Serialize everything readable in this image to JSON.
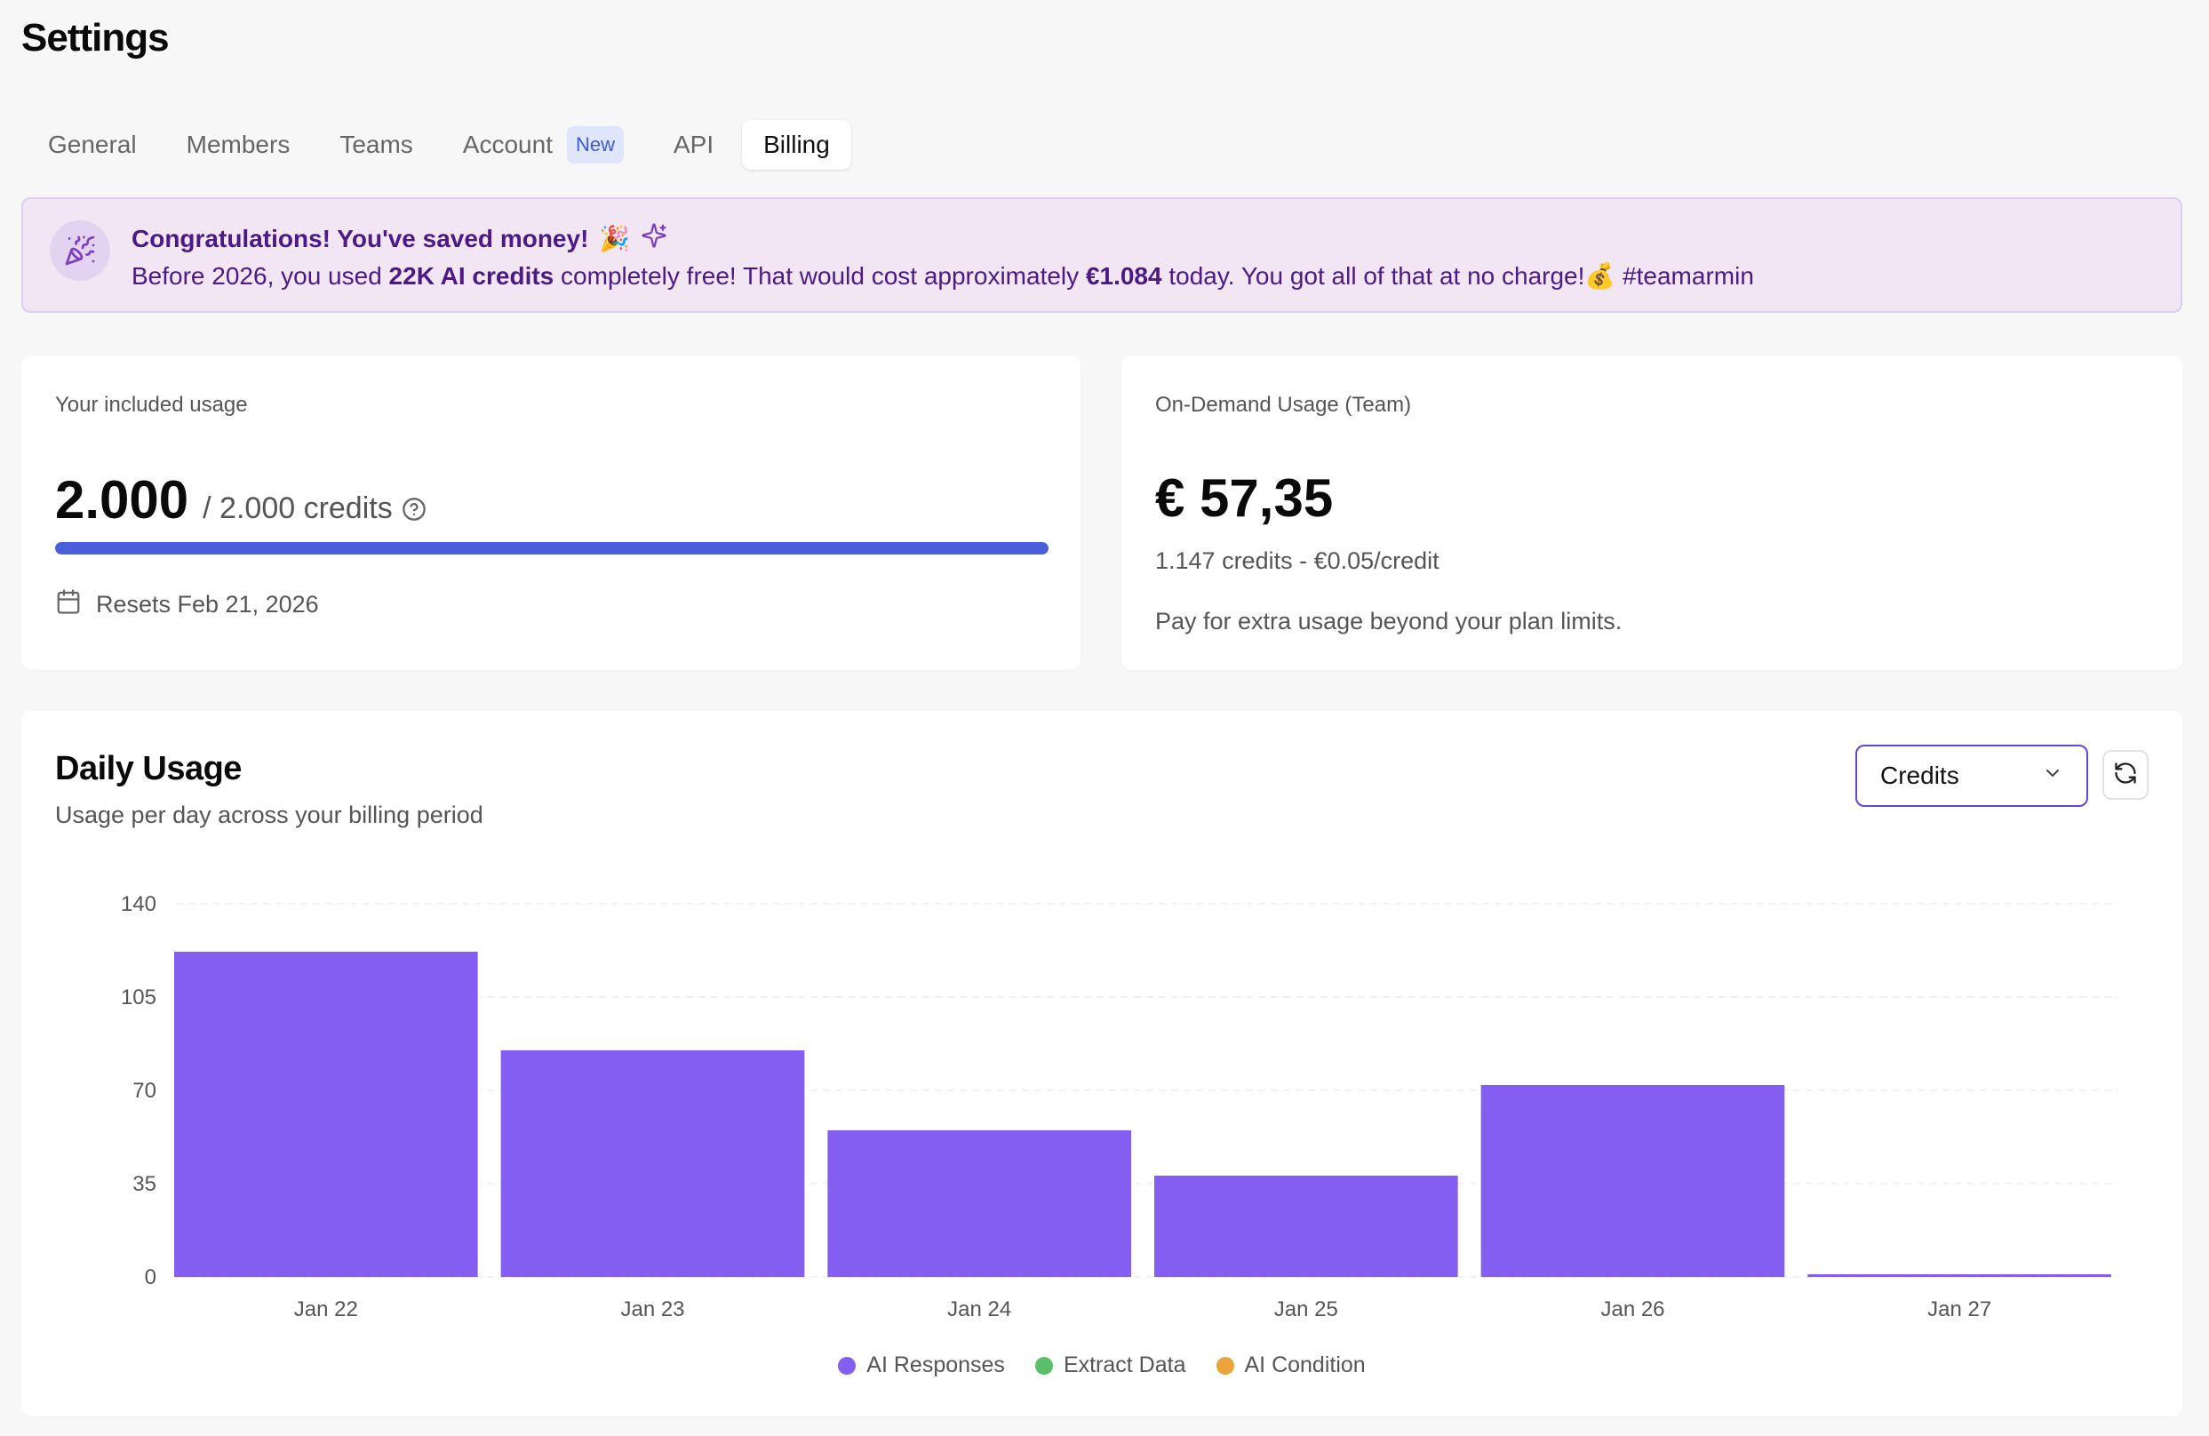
{
  "page": {
    "title": "Settings"
  },
  "tabs": [
    {
      "label": "General"
    },
    {
      "label": "Members"
    },
    {
      "label": "Teams"
    },
    {
      "label": "Account",
      "badge": "New"
    },
    {
      "label": "API"
    },
    {
      "label": "Billing",
      "active": true
    }
  ],
  "banner": {
    "title": "Congratulations! You've saved money!",
    "title_emoji": "🎉",
    "text_1": "Before 2026, you used ",
    "text_bold_1": "22K AI credits",
    "text_2": " completely free! That would cost approximately ",
    "text_bold_2": "€1.084",
    "text_3": " today. You got all of that at no charge!",
    "text_emoji": "💰",
    "text_tag": " #teamarmin",
    "icon": "party-popper-icon",
    "sparkle_icon": "sparkles-icon",
    "colors": {
      "bg": "#f3e6f4",
      "text": "#4b1a86"
    }
  },
  "included_usage": {
    "label": "Your included usage",
    "value": "2.000",
    "total": "/ 2.000 credits",
    "progress_fraction": 1.0,
    "resets": "Resets Feb 21, 2026",
    "progress_color": "#4a5fdc"
  },
  "on_demand": {
    "label": "On-Demand Usage (Team)",
    "value": "€ 57,35",
    "sub": "1.147 credits - €0.05/credit",
    "desc": "Pay for extra usage beyond your plan limits."
  },
  "daily_usage": {
    "title": "Daily Usage",
    "subtitle": "Usage per day across your billing period",
    "select_value": "Credits",
    "refresh_icon": "refresh-icon"
  },
  "chart_data": {
    "type": "bar",
    "stacked": true,
    "categories": [
      "Jan 22",
      "Jan 23",
      "Jan 24",
      "Jan 25",
      "Jan 26",
      "Jan 27"
    ],
    "series": [
      {
        "name": "AI Responses",
        "color": "#845ef0",
        "values": [
          122,
          85,
          55,
          38,
          72,
          1
        ]
      },
      {
        "name": "Extract Data",
        "color": "#5bbf6a",
        "values": [
          0,
          0,
          0,
          0,
          0,
          0
        ]
      },
      {
        "name": "AI Condition",
        "color": "#eba33b",
        "values": [
          0,
          0,
          0,
          0,
          0,
          0
        ]
      }
    ],
    "ylim": [
      0,
      140
    ],
    "yticks": [
      0,
      35,
      70,
      105,
      140
    ],
    "grid": true,
    "legend": "bottom-center"
  }
}
